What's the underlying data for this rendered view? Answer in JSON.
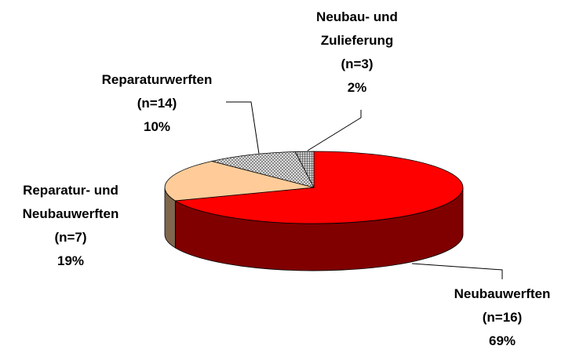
{
  "chart_data": {
    "type": "pie3d",
    "categories": [
      "Neubauwerften",
      "Reparatur- und Neubauwerften",
      "Reparaturwerften",
      "Neubau- und Zulieferung"
    ],
    "counts": [
      "(n=16)",
      "(n=7)",
      "(n=14)",
      "(n=3)"
    ],
    "values": [
      69,
      19,
      10,
      2
    ],
    "value_labels": [
      "69%",
      "19%",
      "10%",
      "2%"
    ],
    "colors": [
      "#ff0000",
      "#ffcc99",
      "#d8d8d8",
      "#c0c0c0"
    ]
  }
}
